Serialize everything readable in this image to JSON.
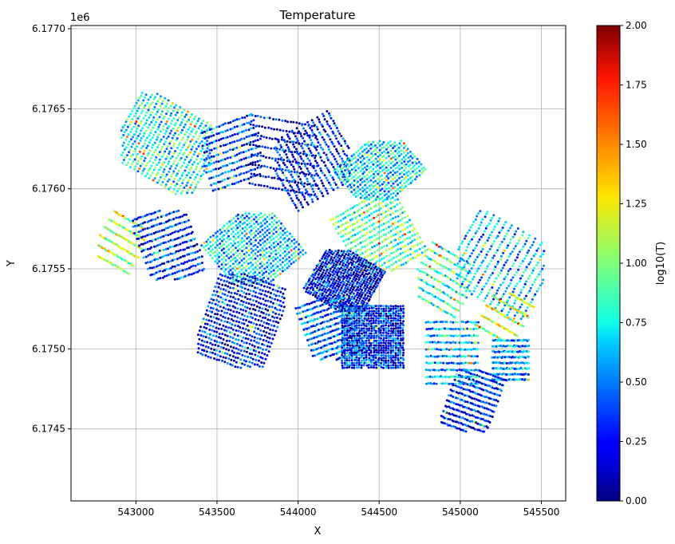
{
  "chart_data": {
    "type": "scatter",
    "title": "Temperature",
    "xlabel": "X",
    "ylabel": "Y",
    "y_offset_label": "1e6",
    "xlim": [
      542600,
      545650
    ],
    "ylim": [
      6174050,
      6177020
    ],
    "x_ticks": [
      {
        "value": 543000,
        "label": "543000"
      },
      {
        "value": 543500,
        "label": "543500"
      },
      {
        "value": 544000,
        "label": "544000"
      },
      {
        "value": 544500,
        "label": "544500"
      },
      {
        "value": 545000,
        "label": "545000"
      },
      {
        "value": 545500,
        "label": "545500"
      }
    ],
    "y_ticks": [
      {
        "value": 6174500,
        "label": "6.1745"
      },
      {
        "value": 6175000,
        "label": "6.1750"
      },
      {
        "value": 6175500,
        "label": "6.1755"
      },
      {
        "value": 6176000,
        "label": "6.1760"
      },
      {
        "value": 6176500,
        "label": "6.1765"
      },
      {
        "value": 6177000,
        "label": "6.1770"
      }
    ],
    "grid": true,
    "colorbar": {
      "label": "log10(T)",
      "colormap": "jet",
      "range": [
        0,
        2
      ],
      "ticks": [
        "0.00",
        "0.25",
        "0.50",
        "0.75",
        "1.00",
        "1.25",
        "1.50",
        "1.75",
        "2.00"
      ]
    },
    "survey_blocks": [
      {
        "name": "",
        "x0": 542930,
        "x1": 543450,
        "y0": 6175980,
        "y1": 6176580,
        "lines": 22,
        "tilt": -60,
        "value_mean": 0.75
      },
      {
        "name": "",
        "x0": 543430,
        "x1": 543760,
        "y0": 6175950,
        "y1": 6176500,
        "lines": 10,
        "tilt": 160,
        "value_mean": 0.35
      },
      {
        "name": "",
        "x0": 543720,
        "x1": 544100,
        "y0": 6175870,
        "y1": 6176550,
        "lines": 8,
        "tilt": 190,
        "value_mean": 0.15
      },
      {
        "name": "",
        "x0": 543880,
        "x1": 544300,
        "y0": 6175870,
        "y1": 6176480,
        "lines": 14,
        "tilt": -120,
        "value_mean": 0.25
      },
      {
        "name": "",
        "x0": 544180,
        "x1": 544830,
        "y0": 6175950,
        "y1": 6176280,
        "lines": 18,
        "tilt": -40,
        "value_mean": 0.7
      },
      {
        "name": "",
        "x0": 542780,
        "x1": 543040,
        "y0": 6175480,
        "y1": 6175850,
        "lines": 6,
        "tilt": 30,
        "value_mean": 1.1
      },
      {
        "name": "",
        "x0": 543000,
        "x1": 543400,
        "y0": 6175450,
        "y1": 6175850,
        "lines": 12,
        "tilt": -20,
        "value_mean": 0.3
      },
      {
        "name": "",
        "x0": 543400,
        "x1": 544050,
        "y0": 6175420,
        "y1": 6175830,
        "lines": 22,
        "tilt": -40,
        "value_mean": 0.65
      },
      {
        "name": "",
        "x0": 544220,
        "x1": 544780,
        "y0": 6175500,
        "y1": 6175920,
        "lines": 16,
        "tilt": -30,
        "value_mean": 0.9
      },
      {
        "name": "",
        "x0": 544050,
        "x1": 544520,
        "y0": 6175250,
        "y1": 6175600,
        "lines": 24,
        "tilt": -60,
        "value_mean": 0.2
      },
      {
        "name": "",
        "x0": 543400,
        "x1": 543900,
        "y0": 6174900,
        "y1": 6175450,
        "lines": 22,
        "tilt": 200,
        "value_mean": 0.25
      },
      {
        "name": "",
        "x0": 544000,
        "x1": 544400,
        "y0": 6174950,
        "y1": 6175300,
        "lines": 12,
        "tilt": -20,
        "value_mean": 0.4
      },
      {
        "name": "",
        "x0": 544200,
        "x1": 544720,
        "y0": 6174900,
        "y1": 6175250,
        "lines": 26,
        "tilt": 0,
        "value_mean": 0.3
      },
      {
        "name": "",
        "x0": 544750,
        "x1": 545050,
        "y0": 6175180,
        "y1": 6175680,
        "lines": 8,
        "tilt": 30,
        "value_mean": 0.85
      },
      {
        "name": "",
        "x0": 545000,
        "x1": 545500,
        "y0": 6175200,
        "y1": 6175850,
        "lines": 14,
        "tilt": -60,
        "value_mean": 0.6
      },
      {
        "name": "",
        "x0": 545100,
        "x1": 545450,
        "y0": 6175080,
        "y1": 6175330,
        "lines": 5,
        "tilt": 30,
        "value_mean": 1.1
      },
      {
        "name": "",
        "x0": 545200,
        "x1": 545420,
        "y0": 6174780,
        "y1": 6175080,
        "lines": 8,
        "tilt": 0,
        "value_mean": 0.55
      },
      {
        "name": "",
        "x0": 544900,
        "x1": 545250,
        "y0": 6174500,
        "y1": 6174850,
        "lines": 12,
        "tilt": 200,
        "value_mean": 0.3
      },
      {
        "name": "",
        "x0": 544750,
        "x1": 545150,
        "y0": 6174800,
        "y1": 6175150,
        "lines": 10,
        "tilt": 0,
        "value_mean": 0.6
      }
    ]
  }
}
